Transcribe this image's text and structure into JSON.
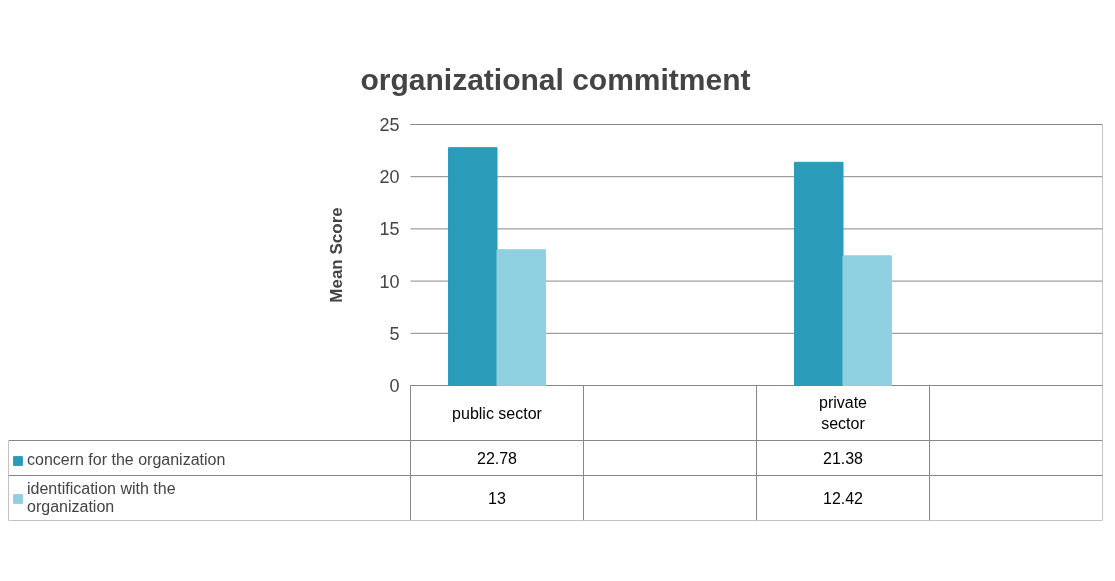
{
  "chart_data": {
    "type": "bar",
    "title": "organizational commitment",
    "ylabel": "Mean Score",
    "categories": [
      "public sector",
      null,
      "private sector",
      null
    ],
    "series": [
      {
        "name": "concern for the organization",
        "color": "#2a9bb8",
        "values": [
          22.78,
          null,
          21.38,
          null
        ]
      },
      {
        "name": "identification with the organization",
        "color": "#8fd0e0",
        "values": [
          13,
          null,
          12.42,
          null
        ]
      }
    ],
    "ylim": [
      0,
      25
    ],
    "yticks": [
      0,
      5,
      10,
      15,
      20,
      25
    ],
    "grid": "y",
    "data_labels": true,
    "legend": "bottom"
  }
}
